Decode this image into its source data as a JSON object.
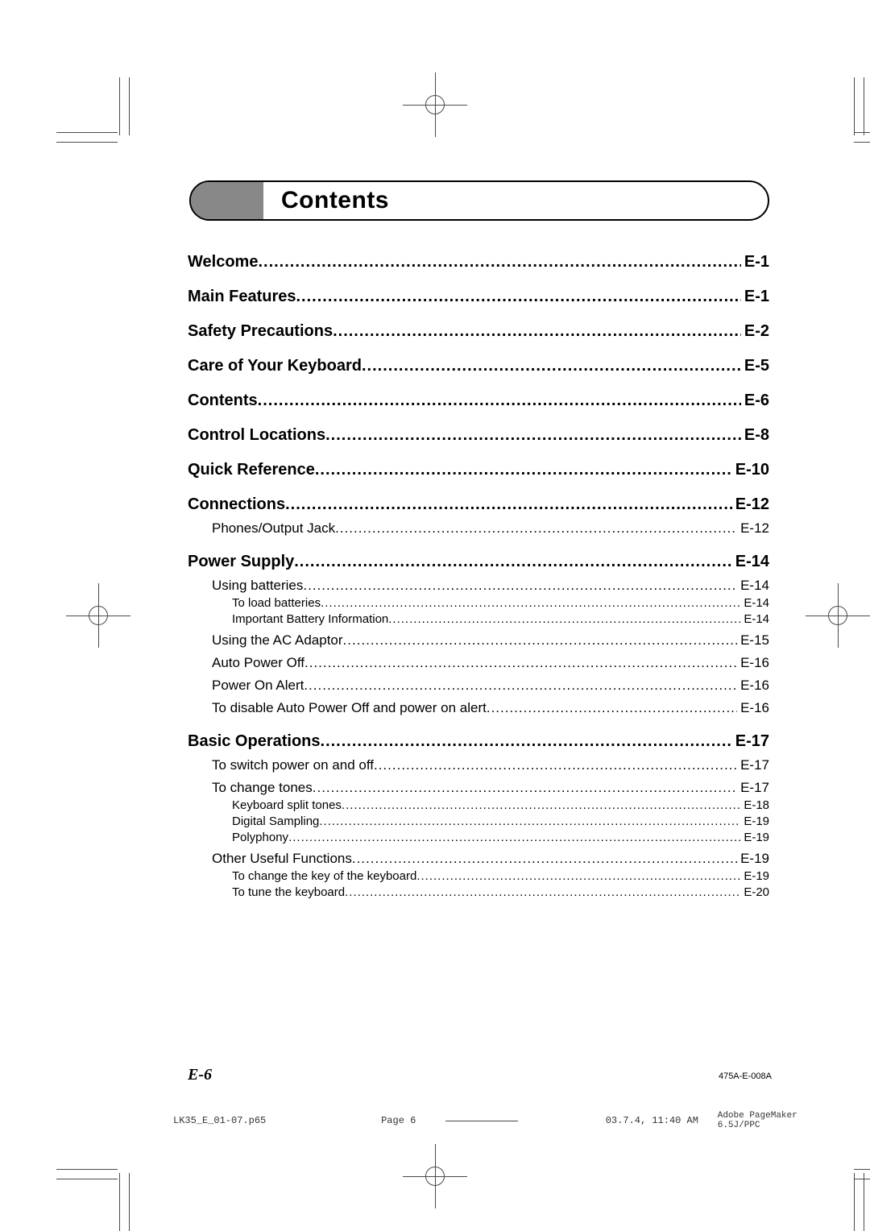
{
  "title": "Contents",
  "toc": {
    "main": [
      {
        "label": "Welcome",
        "page": "E-1"
      },
      {
        "label": "Main Features",
        "page": "E-1"
      },
      {
        "label": "Safety Precautions",
        "page": "E-2"
      },
      {
        "label": "Care of Your Keyboard",
        "page": "E-5"
      },
      {
        "label": "Contents",
        "page": "E-6"
      },
      {
        "label": "Control Locations",
        "page": "E-8"
      },
      {
        "label": "Quick Reference",
        "page": "E-10"
      },
      {
        "label": "Connections",
        "page": "E-12",
        "subs": [
          {
            "label": "Phones/Output Jack",
            "page": "E-12"
          }
        ]
      },
      {
        "label": "Power Supply",
        "page": "E-14",
        "subs": [
          {
            "label": "Using batteries",
            "page": "E-14",
            "subsubs": [
              {
                "label": "To load batteries",
                "page": "E-14"
              },
              {
                "label": "Important Battery Information",
                "page": "E-14"
              }
            ]
          },
          {
            "label": "Using the AC Adaptor",
            "page": "E-15"
          },
          {
            "label": "Auto Power Off",
            "page": "E-16"
          },
          {
            "label": "Power On Alert",
            "page": "E-16"
          },
          {
            "label": "To disable Auto Power Off and power on alert",
            "page": "E-16"
          }
        ]
      },
      {
        "label": "Basic Operations",
        "page": "E-17",
        "subs": [
          {
            "label": "To switch power on and off",
            "page": "E-17"
          },
          {
            "label": "To change tones",
            "page": "E-17",
            "subsubs": [
              {
                "label": "Keyboard split tones",
                "page": "E-18"
              },
              {
                "label": "Digital Sampling",
                "page": "E-19"
              },
              {
                "label": "Polyphony",
                "page": "E-19"
              }
            ]
          },
          {
            "label": "Other Useful Functions",
            "page": "E-19",
            "subsubs": [
              {
                "label": "To change the key of the keyboard",
                "page": "E-19"
              },
              {
                "label": "To tune the keyboard",
                "page": "E-20"
              }
            ]
          }
        ]
      }
    ]
  },
  "footer": {
    "page_num": "E-6",
    "doc_code": "475A-E-008A",
    "slug_file": "LK35_E_01-07.p65",
    "slug_page": "Page 6",
    "slug_date": "03.7.4, 11:40 AM",
    "slug_app": "Adobe PageMaker 6.5J/PPC"
  }
}
